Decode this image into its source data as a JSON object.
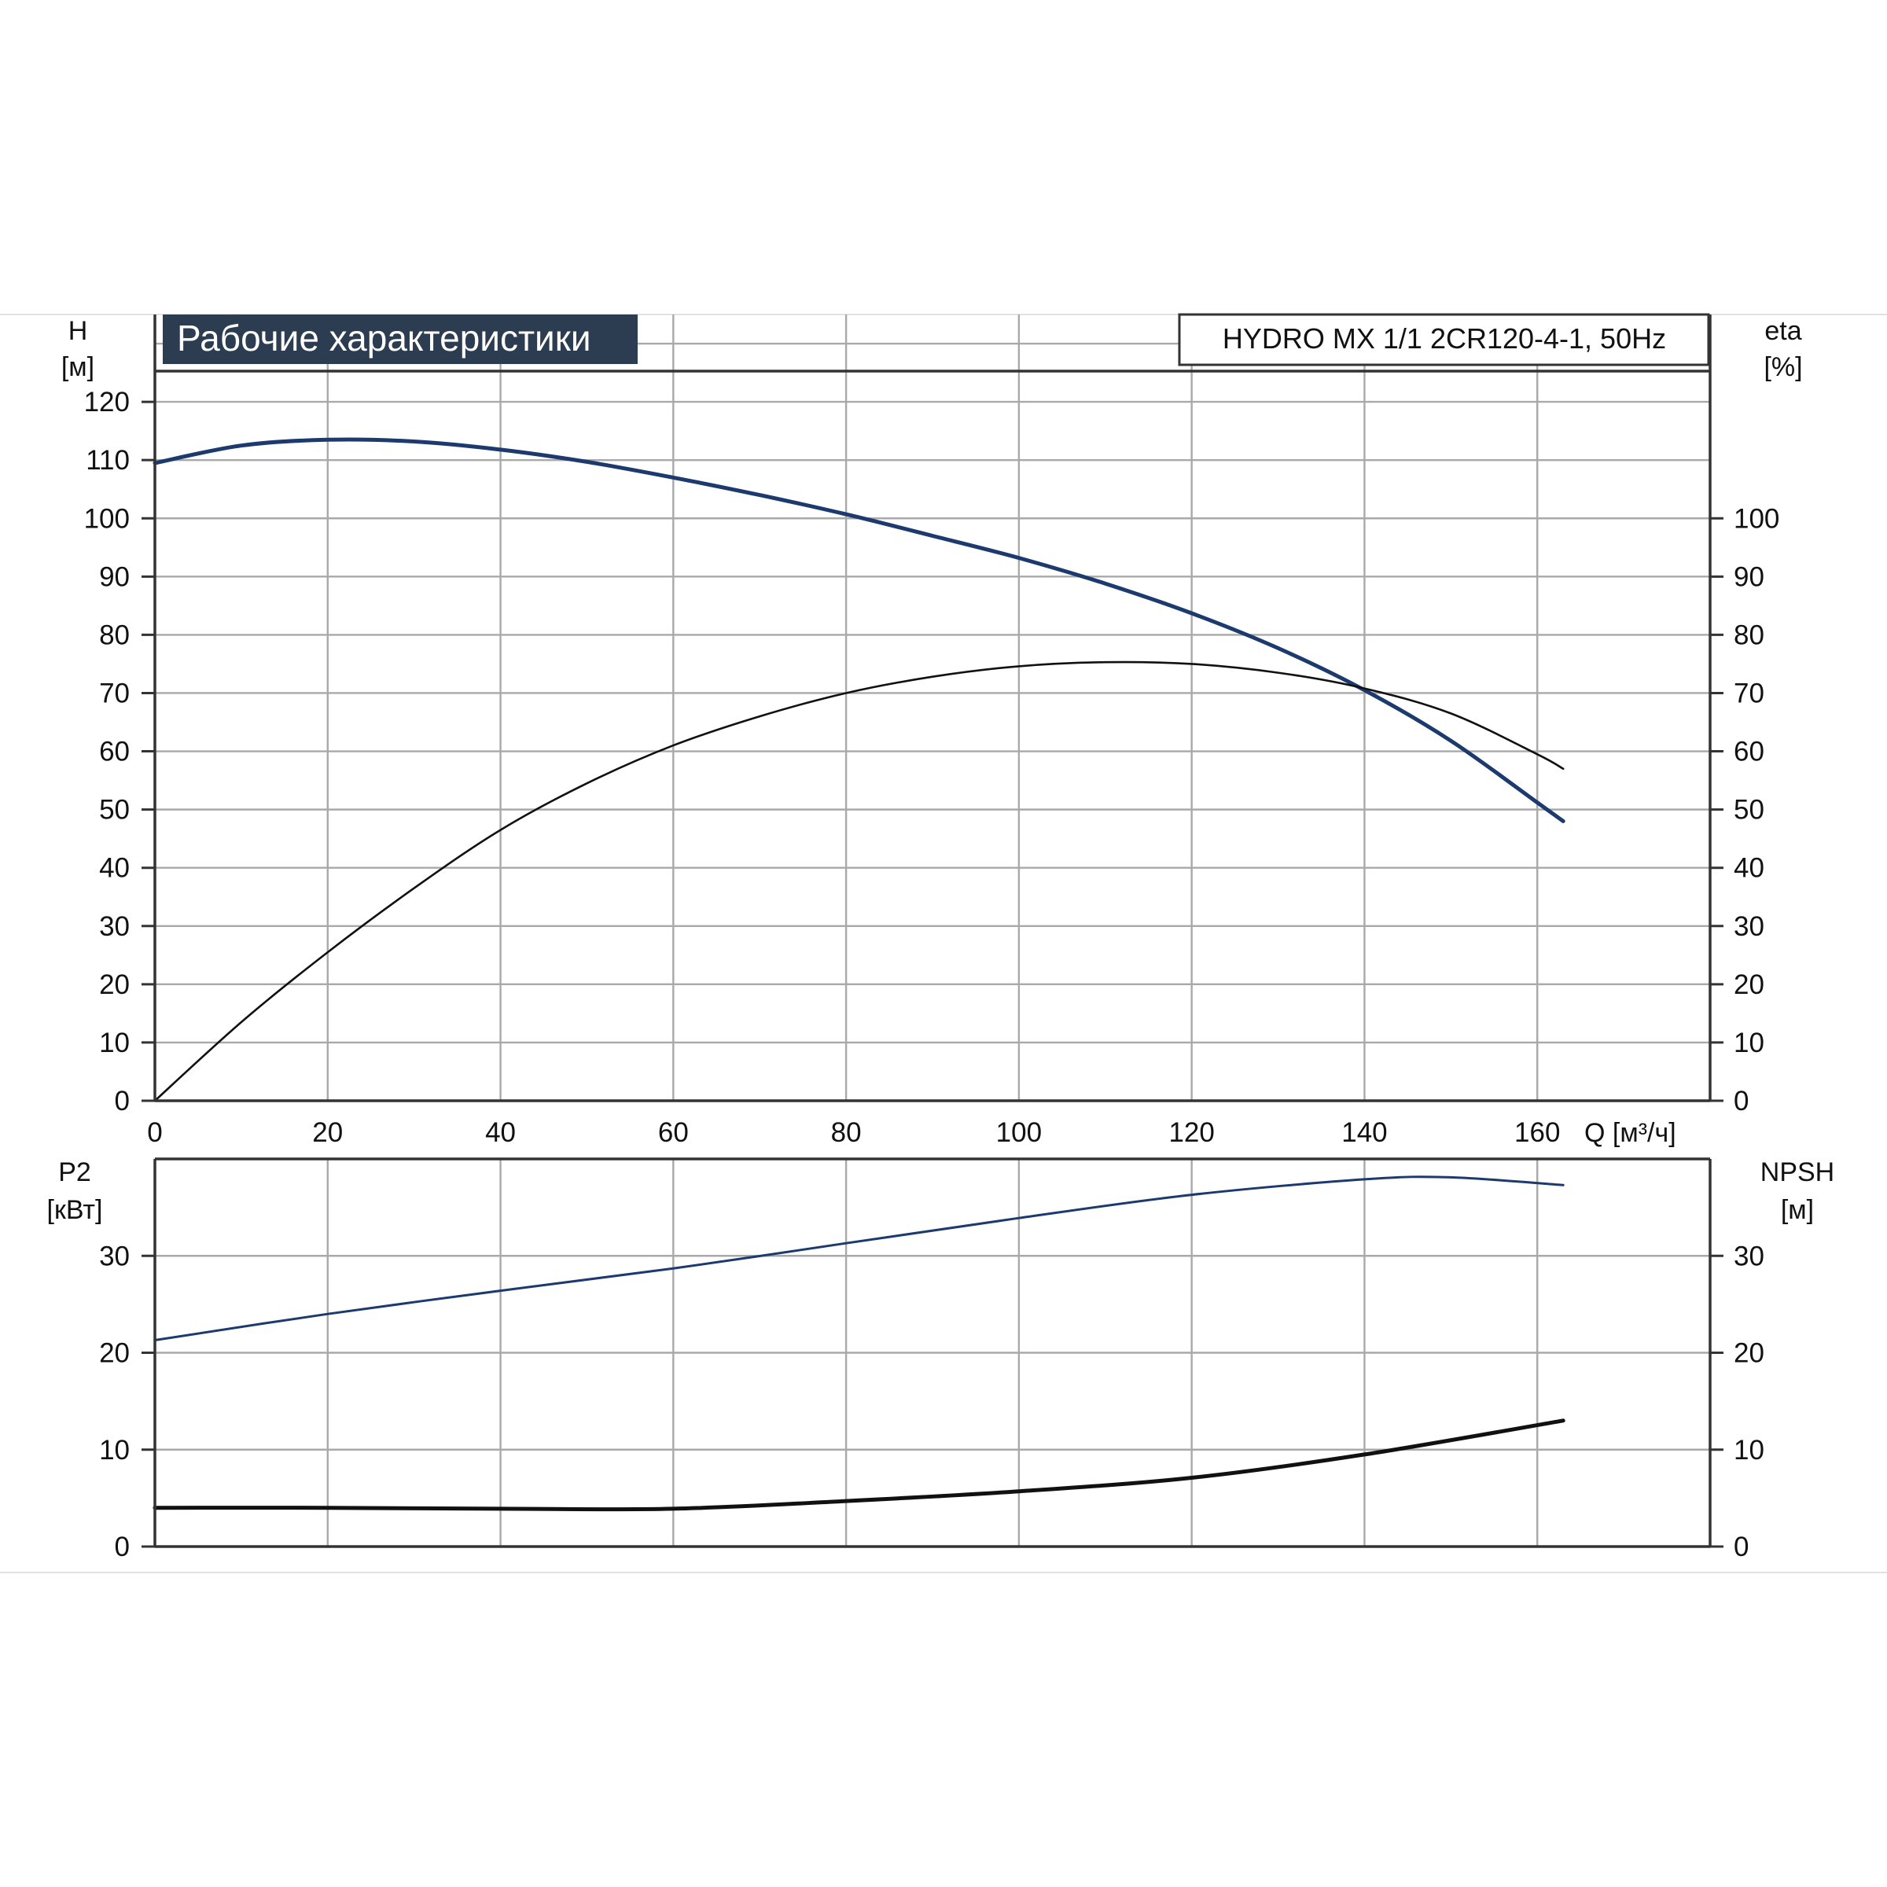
{
  "chart_data": [
    {
      "type": "line",
      "title": "Рабочие характеристики",
      "model_label": "HYDRO MX 1/1 2CR120-4-1, 50Hz",
      "left_axis_title": "H",
      "left_axis_unit": "[м]",
      "right_axis_title": "eta",
      "right_axis_unit": "[%]",
      "x_axis_label": "Q [м³/ч]",
      "xlim": [
        0,
        180
      ],
      "ylim": [
        0,
        135
      ],
      "grid": true,
      "x_ticks": [
        "0",
        "20",
        "40",
        "60",
        "80",
        "100",
        "120",
        "140",
        "160"
      ],
      "left_ticks": [
        "0",
        "10",
        "20",
        "30",
        "40",
        "50",
        "60",
        "70",
        "80",
        "90",
        "100",
        "110",
        "120"
      ],
      "right_ticks": [
        "0",
        "10",
        "20",
        "30",
        "40",
        "50",
        "60",
        "70",
        "80",
        "90",
        "100"
      ],
      "series": [
        {
          "color": "#1c3a6e",
          "x": [
            0,
            10,
            20,
            30,
            40,
            50,
            60,
            70,
            80,
            90,
            100,
            110,
            120,
            130,
            140,
            150,
            160,
            163
          ],
          "values": [
            109.5,
            112.5,
            113.5,
            113.2,
            111.8,
            109.7,
            107,
            104,
            100.7,
            97,
            93.2,
            88.8,
            83.7,
            77.7,
            70.5,
            61.8,
            51.2,
            48
          ]
        },
        {
          "color": "#111111",
          "x": [
            0,
            10,
            20,
            30,
            40,
            50,
            60,
            70,
            80,
            90,
            100,
            110,
            120,
            130,
            140,
            150,
            160,
            163
          ],
          "values": [
            0,
            13.5,
            25.5,
            36.5,
            46.5,
            54.5,
            61,
            66,
            70,
            72.8,
            74.6,
            75.3,
            75,
            73.5,
            70.8,
            66.5,
            59.5,
            57
          ]
        }
      ]
    },
    {
      "type": "line",
      "left_axis_title": "P2",
      "left_axis_unit": "[кВт]",
      "right_axis_title": "NPSH",
      "right_axis_unit": "[м]",
      "xlim": [
        0,
        180
      ],
      "ylim": [
        0,
        40
      ],
      "grid": true,
      "left_ticks": [
        "0",
        "10",
        "20",
        "30"
      ],
      "right_ticks": [
        "0",
        "10",
        "20",
        "30"
      ],
      "series": [
        {
          "color": "#1c3a6e",
          "x": [
            0,
            20,
            40,
            60,
            80,
            100,
            120,
            140,
            150,
            163
          ],
          "values": [
            21.3,
            24,
            26.4,
            28.7,
            31.3,
            33.9,
            36.3,
            37.9,
            38.1,
            37.3
          ]
        },
        {
          "color": "#111111",
          "x": [
            0,
            20,
            40,
            60,
            80,
            100,
            120,
            140,
            163
          ],
          "values": [
            4,
            4,
            3.9,
            3.9,
            4.7,
            5.7,
            7.1,
            9.5,
            13
          ]
        }
      ]
    }
  ]
}
